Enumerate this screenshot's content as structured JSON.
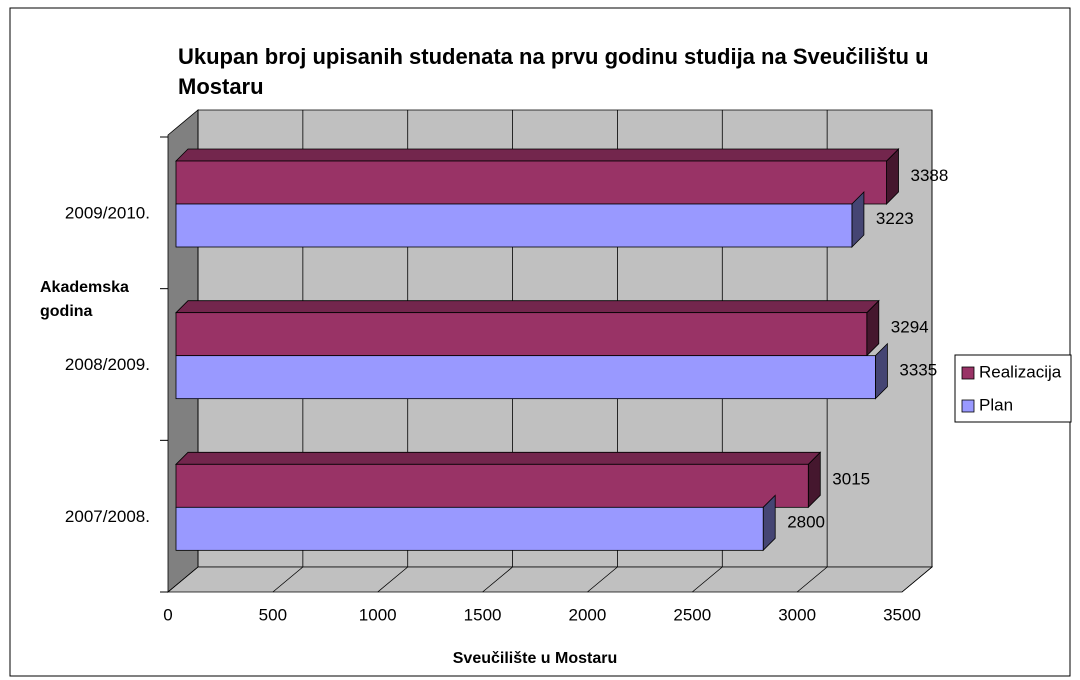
{
  "chart_data": {
    "type": "bar3d_horizontal",
    "title": "Ukupan broj upisanih studenata na prvu godinu studija na Sveučilištu u Mostaru",
    "xlabel": "Sveučilište u Mostaru",
    "ylabel": "Akademska godina",
    "categories": [
      "2007/2008.",
      "2008/2009.",
      "2009/2010."
    ],
    "series": [
      {
        "name": "Realizacija",
        "color": "#993366",
        "values": [
          3015,
          3294,
          3388
        ]
      },
      {
        "name": "Plan",
        "color": "#9999ff",
        "values": [
          2800,
          3335,
          3223
        ]
      }
    ],
    "xlim": [
      0,
      3500
    ],
    "xticks": [
      0,
      500,
      1000,
      1500,
      2000,
      2500,
      3000,
      3500
    ],
    "grid": true,
    "legend": "right"
  }
}
